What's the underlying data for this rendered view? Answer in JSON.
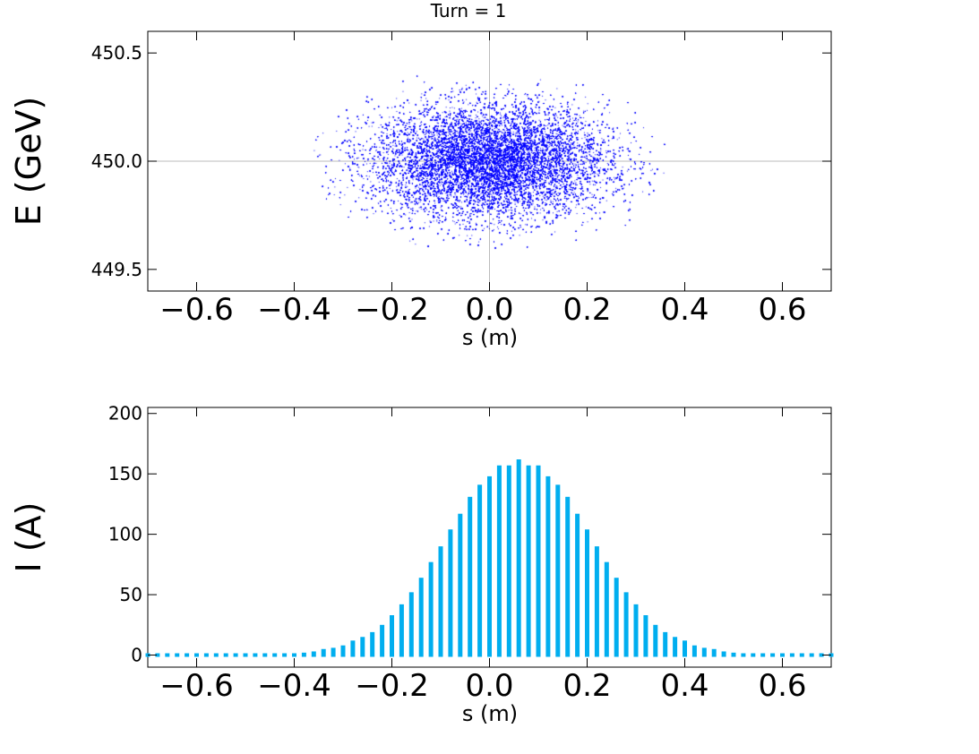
{
  "title": "Turn  =  1",
  "colors": {
    "scatter": "#0000ff",
    "bars": "#00aeef",
    "grid": "#bbbbbb",
    "frame": "#000000"
  },
  "chart_data": [
    {
      "type": "scatter",
      "xlabel": "s  (m)",
      "ylabel": "E  (GeV)",
      "xlim": [
        -0.7,
        0.7
      ],
      "ylim": [
        449.4,
        450.6
      ],
      "xticks": [
        -0.6,
        -0.4,
        -0.2,
        0.0,
        0.2,
        0.4,
        0.6
      ],
      "xtick_labels": [
        "−0.6",
        "−0.4",
        "−0.2",
        "0.0",
        "0.2",
        "0.4",
        "0.6"
      ],
      "yticks": [
        449.5,
        450.0,
        450.5
      ],
      "ytick_labels": [
        "449.5",
        "450.0",
        "450.5"
      ],
      "grid": "crosshair at s = 0.0, E = 450.0",
      "distribution": {
        "center_s": 0.0,
        "center_E": 450.0,
        "sigma_s": 0.12,
        "sigma_E": 0.13,
        "s_range": [
          -0.36,
          0.36
        ],
        "E_range": [
          449.6,
          450.4
        ]
      }
    },
    {
      "type": "bar",
      "xlabel": "s  (m)",
      "ylabel": "I  (A)",
      "xlim": [
        -0.7,
        0.7
      ],
      "ylim": [
        -10,
        205
      ],
      "xticks": [
        -0.6,
        -0.4,
        -0.2,
        0.0,
        0.2,
        0.4,
        0.6
      ],
      "xtick_labels": [
        "−0.6",
        "−0.4",
        "−0.2",
        "0.0",
        "0.2",
        "0.4",
        "0.6"
      ],
      "yticks": [
        0,
        50,
        100,
        150,
        200
      ],
      "ytick_labels": [
        "0",
        "50",
        "100",
        "150",
        "200"
      ],
      "grid": false,
      "x": [
        -0.7,
        -0.68,
        -0.66,
        -0.64,
        -0.62,
        -0.6,
        -0.58,
        -0.56,
        -0.54,
        -0.52,
        -0.5,
        -0.48,
        -0.46,
        -0.44,
        -0.42,
        -0.4,
        -0.38,
        -0.36,
        -0.34,
        -0.32,
        -0.3,
        -0.28,
        -0.26,
        -0.24,
        -0.22,
        -0.2,
        -0.18,
        -0.16,
        -0.14,
        -0.12,
        -0.1,
        -0.08,
        -0.06,
        -0.04,
        -0.02,
        0.0,
        0.02,
        0.04,
        0.06,
        0.08,
        0.1,
        0.12,
        0.14,
        0.16,
        0.18,
        0.2,
        0.22,
        0.24,
        0.26,
        0.28,
        0.3,
        0.32,
        0.34,
        0.36,
        0.38,
        0.4,
        0.42,
        0.44,
        0.46,
        0.48,
        0.5,
        0.52,
        0.54,
        0.56,
        0.58,
        0.6,
        0.62,
        0.64,
        0.66,
        0.68,
        0.7
      ],
      "values": [
        1,
        1,
        1,
        1,
        1,
        1,
        1,
        1,
        1,
        1,
        1,
        1,
        1,
        1,
        1,
        1,
        2,
        3,
        5,
        6,
        8,
        12,
        15,
        19,
        25,
        33,
        42,
        52,
        64,
        77,
        90,
        104,
        117,
        131,
        141,
        148,
        157,
        157,
        162,
        157,
        157,
        148,
        141,
        131,
        117,
        104,
        90,
        77,
        64,
        52,
        42,
        33,
        25,
        19,
        15,
        12,
        8,
        6,
        5,
        3,
        2,
        1,
        1,
        1,
        1,
        1,
        1,
        1,
        1,
        1,
        1
      ]
    }
  ]
}
